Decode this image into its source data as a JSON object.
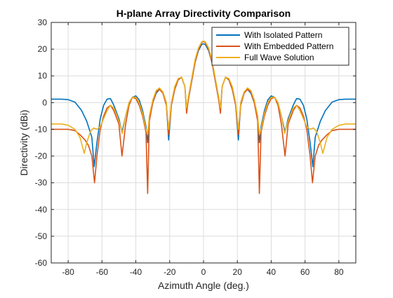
{
  "chart_data": {
    "type": "line",
    "title": "H-plane Array Directivity Comparison",
    "xlabel": "Azimuth Angle (deg.)",
    "ylabel": "Directivity (dBi)",
    "xlim": [
      -90,
      90
    ],
    "ylim": [
      -60,
      30
    ],
    "xticks": [
      -80,
      -60,
      -40,
      -20,
      0,
      20,
      40,
      60,
      80
    ],
    "yticks": [
      -60,
      -50,
      -40,
      -30,
      -20,
      -10,
      0,
      10,
      20,
      30
    ],
    "grid": true,
    "legend_location": "top-right",
    "series": [
      {
        "name": "With Isolated Pattern",
        "color": "#0072BD",
        "points": [
          [
            -90,
            1.3
          ],
          [
            -84,
            1.3
          ],
          [
            -80,
            1.1
          ],
          [
            -76,
            0.2
          ],
          [
            -72,
            -3
          ],
          [
            -69,
            -7
          ],
          [
            -66,
            -13
          ],
          [
            -64.6,
            -24
          ],
          [
            -63,
            -15
          ],
          [
            -61,
            -6
          ],
          [
            -59,
            -1
          ],
          [
            -57,
            1.3
          ],
          [
            -55,
            1.5
          ],
          [
            -53,
            -1
          ],
          [
            -50,
            -6
          ],
          [
            -48.2,
            -11
          ],
          [
            -46,
            -5
          ],
          [
            -44,
            0
          ],
          [
            -42,
            2
          ],
          [
            -40,
            2.5
          ],
          [
            -38,
            1
          ],
          [
            -36,
            -3
          ],
          [
            -34,
            -9
          ],
          [
            -33,
            -15
          ],
          [
            -32,
            -6
          ],
          [
            -30,
            0
          ],
          [
            -28,
            3.5
          ],
          [
            -26,
            5
          ],
          [
            -24,
            4
          ],
          [
            -22,
            0
          ],
          [
            -20.6,
            -14
          ],
          [
            -19,
            -1
          ],
          [
            -17,
            5
          ],
          [
            -15,
            8.5
          ],
          [
            -13,
            9.5
          ],
          [
            -11,
            6
          ],
          [
            -10,
            -3
          ],
          [
            -9,
            1
          ],
          [
            -7,
            8
          ],
          [
            -5,
            15
          ],
          [
            -3,
            19.5
          ],
          [
            -1,
            21.8
          ],
          [
            0,
            22
          ],
          [
            1,
            21.8
          ],
          [
            3,
            19.5
          ],
          [
            5,
            15
          ],
          [
            7,
            8
          ],
          [
            9,
            1
          ],
          [
            10,
            -3
          ],
          [
            11,
            6
          ],
          [
            13,
            9.5
          ],
          [
            15,
            8.5
          ],
          [
            17,
            5
          ],
          [
            19,
            -1
          ],
          [
            20.6,
            -14
          ],
          [
            22,
            0
          ],
          [
            24,
            4
          ],
          [
            26,
            5
          ],
          [
            28,
            3.5
          ],
          [
            30,
            0
          ],
          [
            32,
            -6
          ],
          [
            33,
            -15
          ],
          [
            34,
            -9
          ],
          [
            36,
            -3
          ],
          [
            38,
            1
          ],
          [
            40,
            2.5
          ],
          [
            42,
            2
          ],
          [
            44,
            0
          ],
          [
            46,
            -5
          ],
          [
            48.2,
            -11
          ],
          [
            50,
            -6
          ],
          [
            53,
            -1
          ],
          [
            55,
            1.5
          ],
          [
            57,
            1.3
          ],
          [
            59,
            -1
          ],
          [
            61,
            -6
          ],
          [
            63,
            -15
          ],
          [
            64.6,
            -24
          ],
          [
            66,
            -13
          ],
          [
            69,
            -7
          ],
          [
            72,
            -3
          ],
          [
            76,
            0.2
          ],
          [
            80,
            1.1
          ],
          [
            84,
            1.3
          ],
          [
            90,
            1.3
          ]
        ]
      },
      {
        "name": "With Embedded Pattern",
        "color": "#D95319",
        "points": [
          [
            -90,
            -10
          ],
          [
            -84,
            -10
          ],
          [
            -80,
            -10
          ],
          [
            -76,
            -10.5
          ],
          [
            -73,
            -12
          ],
          [
            -70,
            -14
          ],
          [
            -68,
            -16
          ],
          [
            -66,
            -20
          ],
          [
            -64.4,
            -30
          ],
          [
            -63,
            -20
          ],
          [
            -61,
            -10
          ],
          [
            -59,
            -5
          ],
          [
            -57,
            -2
          ],
          [
            -55,
            -1
          ],
          [
            -53,
            -3
          ],
          [
            -50,
            -8
          ],
          [
            -48.2,
            -20
          ],
          [
            -46,
            -8
          ],
          [
            -44,
            -1
          ],
          [
            -42,
            2
          ],
          [
            -40,
            1.5
          ],
          [
            -38,
            -1
          ],
          [
            -36,
            -5
          ],
          [
            -34,
            -11
          ],
          [
            -33,
            -34
          ],
          [
            -32,
            -7
          ],
          [
            -30,
            0
          ],
          [
            -28,
            4
          ],
          [
            -26,
            5
          ],
          [
            -24,
            3.5
          ],
          [
            -22,
            -1
          ],
          [
            -20.6,
            -12
          ],
          [
            -19,
            -1
          ],
          [
            -17,
            5
          ],
          [
            -15,
            8.5
          ],
          [
            -13,
            9.5
          ],
          [
            -11,
            6
          ],
          [
            -10,
            -4
          ],
          [
            -9,
            1
          ],
          [
            -7,
            8
          ],
          [
            -5,
            15
          ],
          [
            -3,
            20
          ],
          [
            -1,
            22.5
          ],
          [
            0,
            23
          ],
          [
            1,
            22.5
          ],
          [
            3,
            20
          ],
          [
            5,
            15
          ],
          [
            7,
            8
          ],
          [
            9,
            1
          ],
          [
            10,
            -4
          ],
          [
            11,
            6
          ],
          [
            13,
            9.5
          ],
          [
            15,
            8.5
          ],
          [
            17,
            5
          ],
          [
            19,
            -1
          ],
          [
            20.6,
            -12
          ],
          [
            22,
            -1
          ],
          [
            24,
            3.5
          ],
          [
            26,
            5
          ],
          [
            28,
            4
          ],
          [
            30,
            0
          ],
          [
            32,
            -7
          ],
          [
            33,
            -34
          ],
          [
            34,
            -11
          ],
          [
            36,
            -5
          ],
          [
            38,
            -1
          ],
          [
            40,
            1.5
          ],
          [
            42,
            2
          ],
          [
            44,
            -1
          ],
          [
            46,
            -8
          ],
          [
            48.2,
            -20
          ],
          [
            50,
            -8
          ],
          [
            53,
            -3
          ],
          [
            55,
            -1
          ],
          [
            57,
            -2
          ],
          [
            59,
            -5
          ],
          [
            61,
            -10
          ],
          [
            63,
            -20
          ],
          [
            64.4,
            -30
          ],
          [
            66,
            -20
          ],
          [
            68,
            -16
          ],
          [
            70,
            -14
          ],
          [
            73,
            -12
          ],
          [
            76,
            -10.5
          ],
          [
            80,
            -10
          ],
          [
            84,
            -10
          ],
          [
            90,
            -10
          ]
        ]
      },
      {
        "name": "Full Wave Solution",
        "color": "#EDB120",
        "points": [
          [
            -90,
            -8
          ],
          [
            -84,
            -8
          ],
          [
            -80,
            -8.5
          ],
          [
            -76,
            -10
          ],
          [
            -73,
            -13
          ],
          [
            -70.5,
            -19
          ],
          [
            -69,
            -15
          ],
          [
            -67,
            -11
          ],
          [
            -65,
            -9.5
          ],
          [
            -63,
            -10
          ],
          [
            -61,
            -9
          ],
          [
            -59,
            -6
          ],
          [
            -57,
            -3
          ],
          [
            -55,
            -1
          ],
          [
            -53,
            -2
          ],
          [
            -51,
            -5
          ],
          [
            -49,
            -9
          ],
          [
            -48,
            -11.5
          ],
          [
            -46,
            -5
          ],
          [
            -44,
            0
          ],
          [
            -42,
            2
          ],
          [
            -40,
            2
          ],
          [
            -38,
            0
          ],
          [
            -36,
            -4
          ],
          [
            -34,
            -10
          ],
          [
            -33,
            -12
          ],
          [
            -32,
            -5
          ],
          [
            -30,
            1
          ],
          [
            -28,
            4.5
          ],
          [
            -26,
            5.5
          ],
          [
            -24,
            4
          ],
          [
            -22,
            0
          ],
          [
            -20.6,
            -10
          ],
          [
            -19,
            0
          ],
          [
            -17,
            6
          ],
          [
            -15,
            9
          ],
          [
            -13,
            9.5
          ],
          [
            -11,
            6
          ],
          [
            -10,
            -2
          ],
          [
            -9,
            2
          ],
          [
            -7,
            9
          ],
          [
            -5,
            16
          ],
          [
            -3,
            20.5
          ],
          [
            -1,
            22.8
          ],
          [
            0,
            23
          ],
          [
            1,
            22.8
          ],
          [
            3,
            20.5
          ],
          [
            5,
            16
          ],
          [
            7,
            9
          ],
          [
            9,
            2
          ],
          [
            10,
            -2
          ],
          [
            11,
            6
          ],
          [
            13,
            9.5
          ],
          [
            15,
            9
          ],
          [
            17,
            6
          ],
          [
            19,
            0
          ],
          [
            20.6,
            -10
          ],
          [
            22,
            0
          ],
          [
            24,
            4
          ],
          [
            26,
            5.5
          ],
          [
            28,
            4.5
          ],
          [
            30,
            1
          ],
          [
            32,
            -5
          ],
          [
            33,
            -12
          ],
          [
            34,
            -10
          ],
          [
            36,
            -4
          ],
          [
            38,
            0
          ],
          [
            40,
            2
          ],
          [
            42,
            2
          ],
          [
            44,
            0
          ],
          [
            46,
            -5
          ],
          [
            48,
            -11.5
          ],
          [
            49,
            -9
          ],
          [
            51,
            -5
          ],
          [
            53,
            -2
          ],
          [
            55,
            -1
          ],
          [
            57,
            -3
          ],
          [
            59,
            -6
          ],
          [
            61,
            -9
          ],
          [
            63,
            -10
          ],
          [
            65,
            -9.5
          ],
          [
            67,
            -11
          ],
          [
            69,
            -15
          ],
          [
            70.5,
            -19
          ],
          [
            73,
            -13
          ],
          [
            76,
            -10
          ],
          [
            80,
            -8.5
          ],
          [
            84,
            -8
          ],
          [
            90,
            -8
          ]
        ]
      }
    ]
  }
}
